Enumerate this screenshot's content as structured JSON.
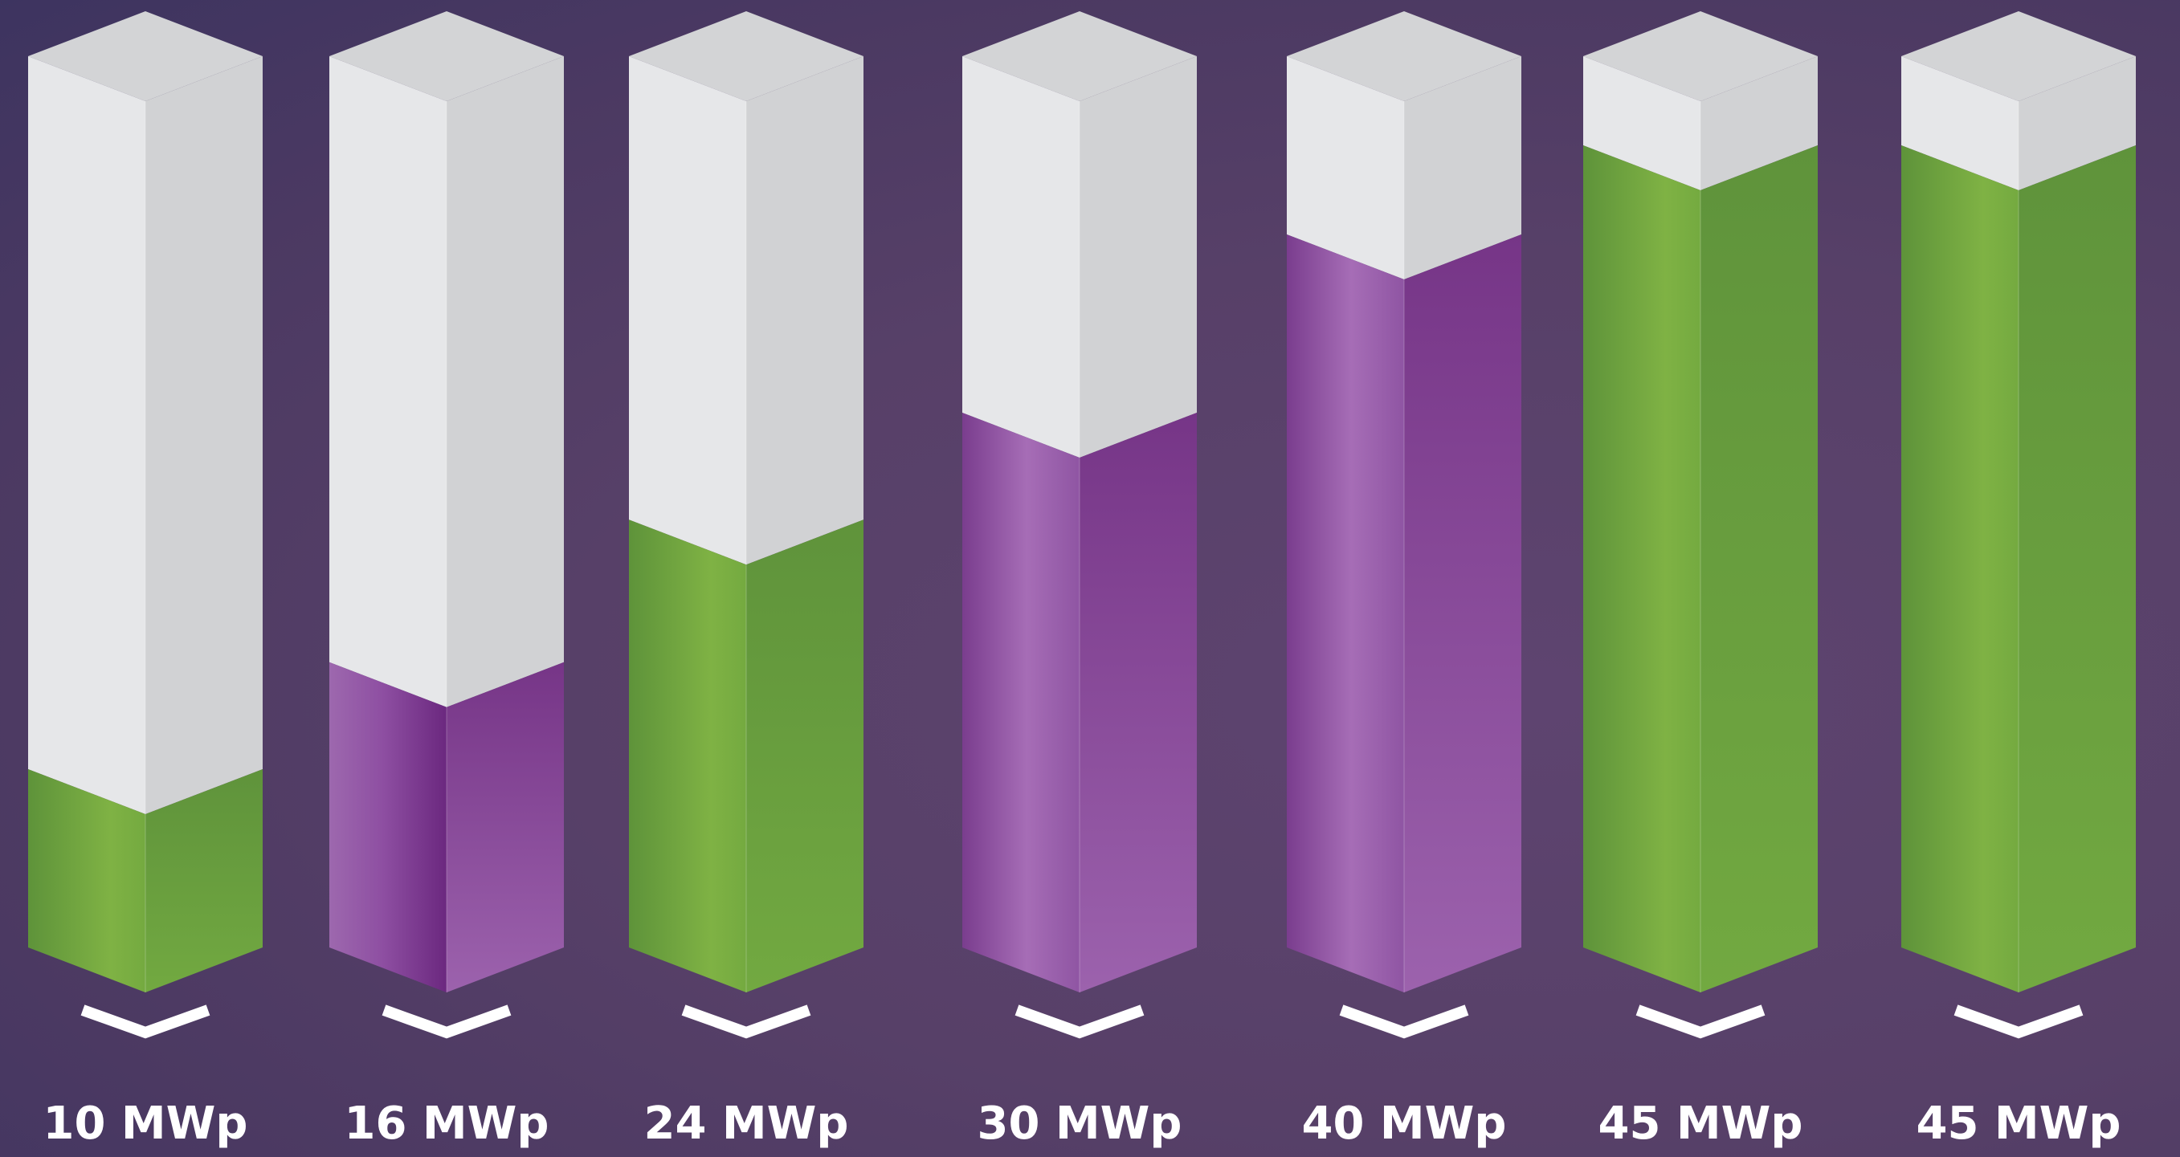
{
  "chart_data": {
    "type": "bar",
    "style": "3d-isometric-columns",
    "categories": [
      "10 MWp",
      "16 MWp",
      "24 MWp",
      "30 MWp",
      "40 MWp",
      "45 MWp",
      "45 MWp"
    ],
    "values": [
      10,
      16,
      24,
      30,
      40,
      45,
      45
    ],
    "ylim": [
      0,
      50
    ],
    "grid": false,
    "legend": "none",
    "fill_colors": [
      "green",
      "purple",
      "green",
      "purple",
      "purple",
      "green",
      "green"
    ]
  },
  "colors": {
    "green_light": "#7db043",
    "green_dark": "#5e933a",
    "purple_light": "#9d68ae",
    "purple_dark": "#6c2a80",
    "cap_left": "#e6e7e9",
    "cap_right": "#d1d2d4",
    "cap_top": "#d3d4d6",
    "label": "#ffffff"
  }
}
